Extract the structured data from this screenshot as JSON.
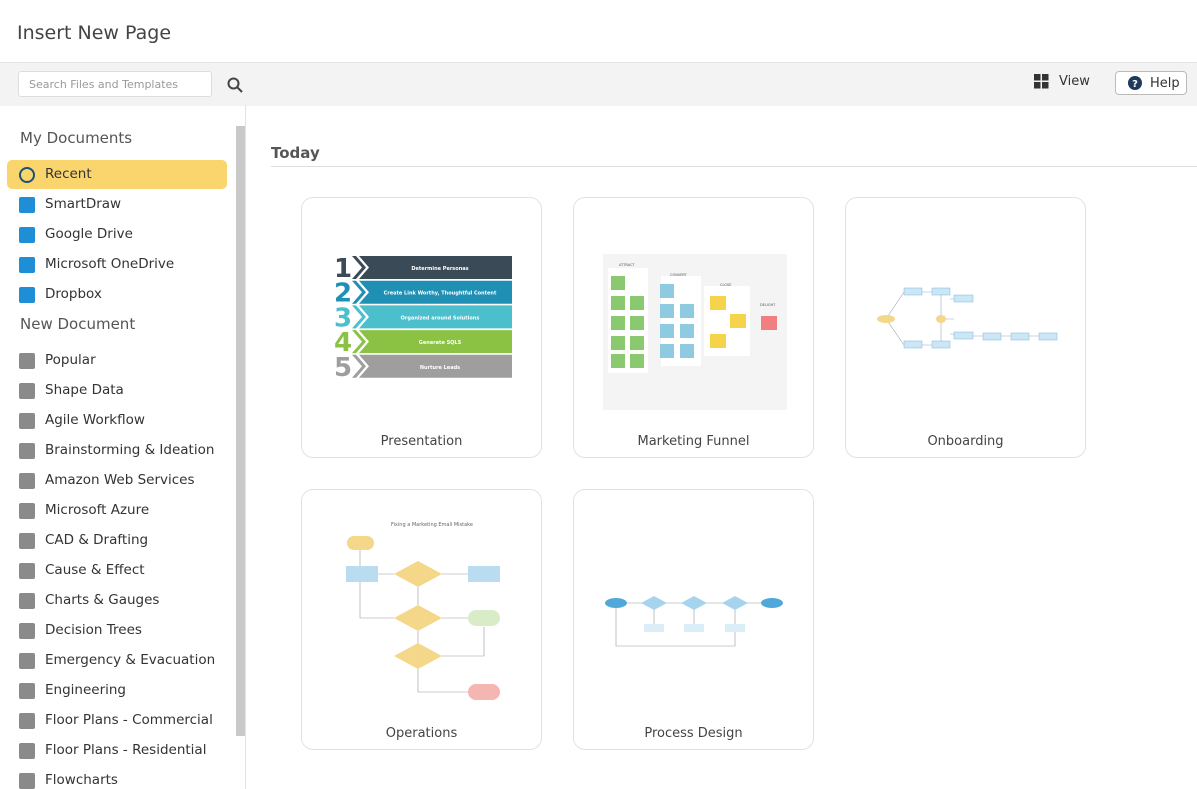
{
  "header": {
    "title": "Insert New Page"
  },
  "toolbar": {
    "search_placeholder": "Search Files and Templates",
    "view": "View",
    "help": "Help"
  },
  "sidebar": {
    "my_documents": {
      "heading": "My Documents",
      "items": [
        "Recent",
        "SmartDraw",
        "Google Drive",
        "Microsoft OneDrive",
        "Dropbox"
      ]
    },
    "new_document": {
      "heading": "New Document",
      "items": [
        "Popular",
        "Shape Data",
        "Agile Workflow",
        "Brainstorming & Ideation",
        "Amazon Web Services",
        "Microsoft Azure",
        "CAD & Drafting",
        "Cause & Effect",
        "Charts & Gauges",
        "Decision Trees",
        "Emergency & Evacuation",
        "Engineering",
        "Floor Plans - Commercial",
        "Floor Plans - Residential",
        "Flowcharts"
      ]
    }
  },
  "main": {
    "section": "Today",
    "cards": [
      {
        "label": "Presentation",
        "steps": [
          {
            "number": "1",
            "text": "Determine Personas"
          },
          {
            "number": "2",
            "text": "Create Link Worthy, Thoughtful Content"
          },
          {
            "number": "3",
            "text": "Organized around Solutions"
          },
          {
            "number": "4",
            "text": "Generate SQLS"
          },
          {
            "number": "5",
            "text": "Nurture Leads"
          }
        ]
      },
      {
        "label": "Marketing Funnel",
        "columns": [
          "ATTRACT",
          "CONVERT",
          "CLOSE",
          "DELIGHT"
        ]
      },
      {
        "label": "Onboarding"
      },
      {
        "label": "Operations",
        "title": "Fixing a Marketing Email Mistake"
      },
      {
        "label": "Process Design"
      }
    ]
  }
}
